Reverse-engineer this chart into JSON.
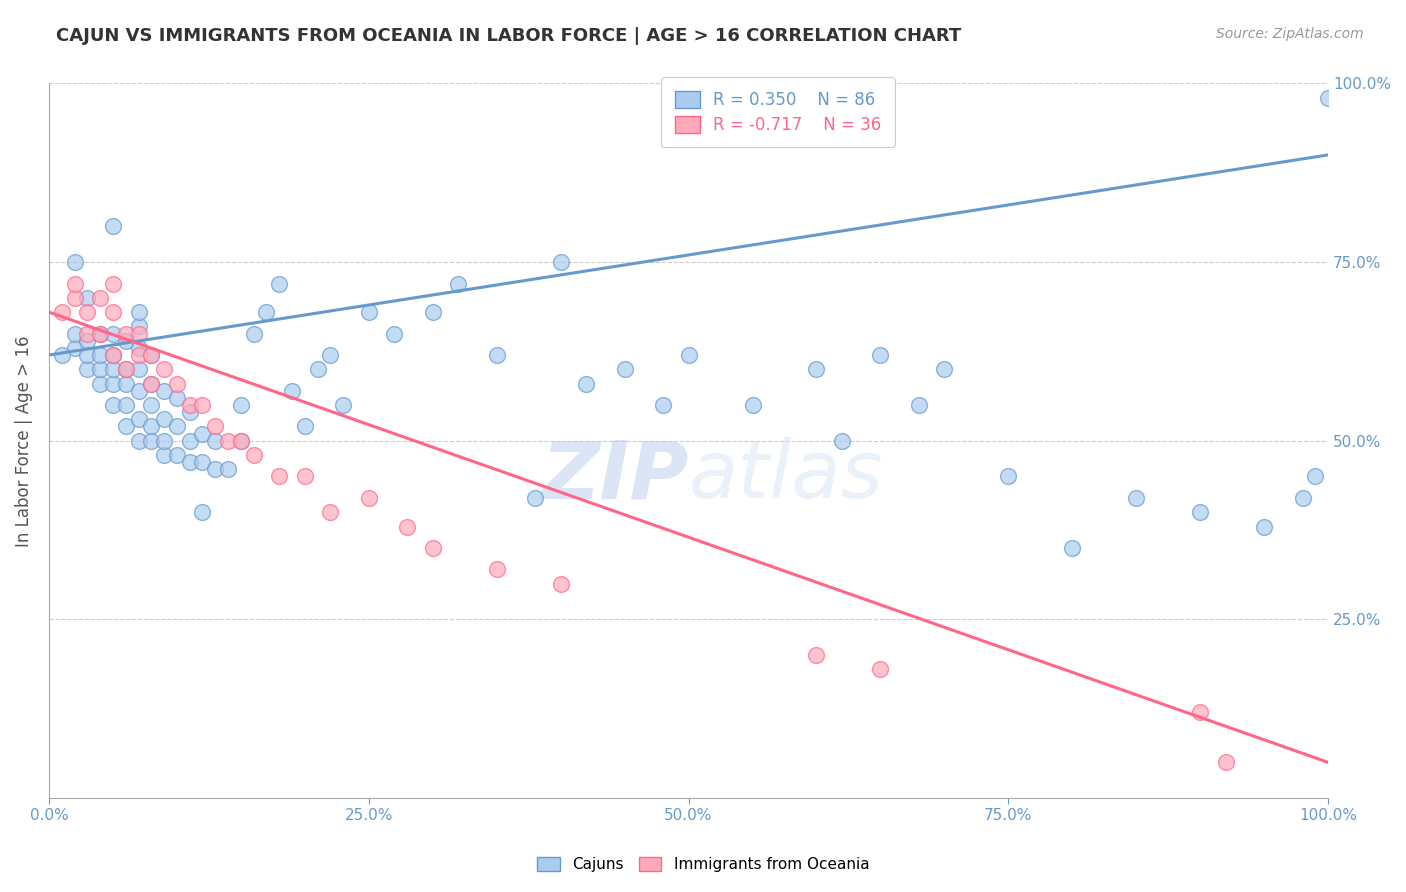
{
  "title": "CAJUN VS IMMIGRANTS FROM OCEANIA IN LABOR FORCE | AGE > 16 CORRELATION CHART",
  "source": "Source: ZipAtlas.com",
  "xlabel": "",
  "ylabel": "In Labor Force | Age > 16",
  "xlim": [
    0,
    100
  ],
  "ylim": [
    0,
    100
  ],
  "xticks": [
    0,
    25,
    50,
    75,
    100
  ],
  "yticks": [
    25,
    50,
    75,
    100
  ],
  "xticklabels": [
    "0.0%",
    "25.0%",
    "50.0%",
    "75.0%",
    "100.0%"
  ],
  "yticklabels": [
    "25.0%",
    "50.0%",
    "75.0%",
    "100.0%"
  ],
  "blue_R": 0.35,
  "blue_N": 86,
  "pink_R": -0.717,
  "pink_N": 36,
  "blue_line_x": [
    0,
    100
  ],
  "blue_line_y": [
    62,
    90
  ],
  "pink_line_x": [
    0,
    100
  ],
  "pink_line_y": [
    68,
    5
  ],
  "blue_color": "#6699CC",
  "pink_color": "#FF6688",
  "blue_scatter_face": "#AACCEE",
  "pink_scatter_face": "#FFAABB",
  "background_color": "#FFFFFF",
  "grid_color": "#CCCCCC",
  "title_color": "#333333",
  "axis_label_color": "#6699CC",
  "right_label_color": "#6699CC",
  "watermark_zip": "ZIP",
  "watermark_atlas": "atlas",
  "blue_scatter_x": [
    1,
    2,
    2,
    3,
    3,
    3,
    4,
    4,
    4,
    4,
    5,
    5,
    5,
    5,
    5,
    6,
    6,
    6,
    6,
    6,
    7,
    7,
    7,
    7,
    7,
    7,
    8,
    8,
    8,
    8,
    8,
    9,
    9,
    9,
    9,
    10,
    10,
    10,
    11,
    11,
    11,
    12,
    12,
    13,
    13,
    14,
    15,
    15,
    16,
    17,
    18,
    19,
    20,
    21,
    22,
    23,
    25,
    27,
    30,
    32,
    35,
    38,
    40,
    42,
    45,
    48,
    50,
    55,
    60,
    62,
    65,
    68,
    70,
    75,
    80,
    85,
    90,
    95,
    98,
    99,
    100,
    2,
    3,
    5,
    7,
    12
  ],
  "blue_scatter_y": [
    62,
    63,
    65,
    60,
    62,
    64,
    58,
    60,
    62,
    65,
    55,
    58,
    60,
    62,
    65,
    52,
    55,
    58,
    60,
    64,
    50,
    53,
    57,
    60,
    63,
    66,
    50,
    52,
    55,
    58,
    62,
    48,
    50,
    53,
    57,
    48,
    52,
    56,
    47,
    50,
    54,
    47,
    51,
    46,
    50,
    46,
    50,
    55,
    65,
    68,
    72,
    57,
    52,
    60,
    62,
    55,
    68,
    65,
    68,
    72,
    62,
    42,
    75,
    58,
    60,
    55,
    62,
    55,
    60,
    50,
    62,
    55,
    60,
    45,
    35,
    42,
    40,
    38,
    42,
    45,
    98,
    75,
    70,
    80,
    68,
    40
  ],
  "pink_scatter_x": [
    1,
    2,
    2,
    3,
    3,
    4,
    4,
    5,
    5,
    5,
    6,
    6,
    7,
    7,
    8,
    8,
    9,
    10,
    11,
    12,
    13,
    14,
    15,
    16,
    18,
    20,
    22,
    25,
    28,
    30,
    35,
    40,
    60,
    65,
    90,
    92
  ],
  "pink_scatter_y": [
    68,
    70,
    72,
    65,
    68,
    65,
    70,
    62,
    68,
    72,
    60,
    65,
    62,
    65,
    58,
    62,
    60,
    58,
    55,
    55,
    52,
    50,
    50,
    48,
    45,
    45,
    40,
    42,
    38,
    35,
    32,
    30,
    20,
    18,
    12,
    5
  ]
}
